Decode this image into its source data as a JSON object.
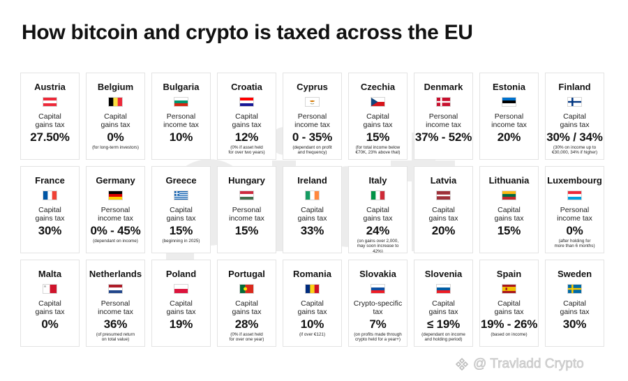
{
  "title": "How bitcoin and crypto is taxed across the EU",
  "watermark": {
    "text": "@ Travladd Crypto",
    "icon": "binance-diamond-icon"
  },
  "countries": [
    {
      "name": "Austria",
      "type": "Capital\ngains tax",
      "rate": "27.50%",
      "note": "",
      "flag": {
        "kind": "h",
        "colors": [
          "#ED2939",
          "#ffffff",
          "#ED2939"
        ]
      }
    },
    {
      "name": "Belgium",
      "type": "Capital\ngains tax",
      "rate": "0%",
      "note": "(for long-term investors)",
      "flag": {
        "kind": "v",
        "colors": [
          "#000000",
          "#FAE042",
          "#ED2939"
        ]
      }
    },
    {
      "name": "Bulgaria",
      "type": "Personal\nincome tax",
      "rate": "10%",
      "note": "",
      "flag": {
        "kind": "h",
        "colors": [
          "#ffffff",
          "#00966E",
          "#D62612"
        ]
      }
    },
    {
      "name": "Croatia",
      "type": "Capital\ngains tax",
      "rate": "12%",
      "note": "(0% if asset held\nfor over two years)",
      "flag": {
        "kind": "h",
        "colors": [
          "#FF0000",
          "#ffffff",
          "#171796"
        ]
      }
    },
    {
      "name": "Cyprus",
      "type": "Personal\nincome tax",
      "rate": "0 - 35%",
      "note": "(dependant on profit\nand frequency)",
      "flag": {
        "kind": "cyprus",
        "colors": [
          "#ffffff",
          "#D57800",
          "#4E5B31"
        ]
      }
    },
    {
      "name": "Czechia",
      "type": "Capital\ngains tax",
      "rate": "15%",
      "note": "(for total income below\n€70K, 23% above that)",
      "flag": {
        "kind": "czech",
        "colors": [
          "#ffffff",
          "#D7141A",
          "#11457E"
        ]
      }
    },
    {
      "name": "Denmark",
      "type": "Personal\nincome tax",
      "rate": "37% - 52%",
      "note": "",
      "flag": {
        "kind": "nordic",
        "colors": [
          "#C8102E",
          "#ffffff"
        ]
      }
    },
    {
      "name": "Estonia",
      "type": "Personal\nincome tax",
      "rate": "20%",
      "note": "",
      "flag": {
        "kind": "h",
        "colors": [
          "#0072CE",
          "#000000",
          "#ffffff"
        ]
      }
    },
    {
      "name": "Finland",
      "type": "Capital\ngains tax",
      "rate": "30% / 34%",
      "note": "(30% on income up to\n€30,000, 34% if higher)",
      "flag": {
        "kind": "nordic",
        "colors": [
          "#ffffff",
          "#003580"
        ]
      }
    },
    {
      "name": "France",
      "type": "Capital\ngains tax",
      "rate": "30%",
      "note": "",
      "flag": {
        "kind": "v",
        "colors": [
          "#0055A4",
          "#ffffff",
          "#EF4135"
        ]
      }
    },
    {
      "name": "Germany",
      "type": "Personal\nincome tax",
      "rate": "0% - 45%",
      "note": "(dependant on income)",
      "flag": {
        "kind": "h",
        "colors": [
          "#000000",
          "#DD0000",
          "#FFCE00"
        ]
      }
    },
    {
      "name": "Greece",
      "type": "Capital\ngains tax",
      "rate": "15%",
      "note": "(beginning in 2025)",
      "flag": {
        "kind": "greece",
        "colors": [
          "#0D5EAF",
          "#ffffff"
        ]
      }
    },
    {
      "name": "Hungary",
      "type": "Personal\nincome tax",
      "rate": "15%",
      "note": "",
      "flag": {
        "kind": "h",
        "colors": [
          "#CD2A3E",
          "#ffffff",
          "#436F4D"
        ]
      }
    },
    {
      "name": "Ireland",
      "type": "Capital\ngains tax",
      "rate": "33%",
      "note": "",
      "flag": {
        "kind": "v",
        "colors": [
          "#169B62",
          "#ffffff",
          "#FF883E"
        ]
      }
    },
    {
      "name": "Italy",
      "type": "Capital\ngains tax",
      "rate": "24%",
      "note": "(on gains over 2,000,\nmay soon increase to 42%)",
      "flag": {
        "kind": "v",
        "colors": [
          "#009246",
          "#ffffff",
          "#CE2B37"
        ]
      }
    },
    {
      "name": "Latvia",
      "type": "Capital\ngains tax",
      "rate": "20%",
      "note": "",
      "flag": {
        "kind": "latvia",
        "colors": [
          "#9E3039",
          "#ffffff"
        ]
      }
    },
    {
      "name": "Lithuania",
      "type": "Capital\ngains tax",
      "rate": "15%",
      "note": "",
      "flag": {
        "kind": "h",
        "colors": [
          "#FDB913",
          "#006A44",
          "#C1272D"
        ]
      }
    },
    {
      "name": "Luxembourg",
      "type": "Personal\nincome tax",
      "rate": "0%",
      "note": "(after holding for\nmore than 6 months)",
      "flag": {
        "kind": "h",
        "colors": [
          "#ED2939",
          "#ffffff",
          "#00A1DE"
        ]
      }
    },
    {
      "name": "Malta",
      "type": "Capital\ngains tax",
      "rate": "0%",
      "note": "",
      "flag": {
        "kind": "v2",
        "colors": [
          "#ffffff",
          "#CF142B"
        ]
      }
    },
    {
      "name": "Netherlands",
      "type": "Personal\nincome tax",
      "rate": "36%",
      "note": "(of presumed return\non total value)",
      "flag": {
        "kind": "h",
        "colors": [
          "#AE1C28",
          "#ffffff",
          "#21468B"
        ]
      }
    },
    {
      "name": "Poland",
      "type": "Capital\ngains tax",
      "rate": "19%",
      "note": "",
      "flag": {
        "kind": "h2",
        "colors": [
          "#ffffff",
          "#DC143C"
        ]
      }
    },
    {
      "name": "Portugal",
      "type": "Capital\ngains tax",
      "rate": "28%",
      "note": "(0% if asset held\nfor over one year)",
      "flag": {
        "kind": "portugal",
        "colors": [
          "#046A38",
          "#DA291C",
          "#FFE900"
        ]
      }
    },
    {
      "name": "Romania",
      "type": "Capital\ngains tax",
      "rate": "10%",
      "note": "(if over €121)",
      "flag": {
        "kind": "v",
        "colors": [
          "#002B7F",
          "#FCD116",
          "#CE1126"
        ]
      }
    },
    {
      "name": "Slovakia",
      "type": "Crypto-specific\ntax",
      "rate": "7%",
      "note": "(on profits made through\ncrypto held for a year+)",
      "flag": {
        "kind": "h",
        "colors": [
          "#ffffff",
          "#0B4EA2",
          "#EE1C25"
        ]
      }
    },
    {
      "name": "Slovenia",
      "type": "Capital\ngains tax",
      "rate": "≤ 19%",
      "note": "(dependant on income\nand holding period)",
      "flag": {
        "kind": "h",
        "colors": [
          "#ffffff",
          "#005DA4",
          "#ED1C24"
        ]
      }
    },
    {
      "name": "Spain",
      "type": "Capital\ngains tax",
      "rate": "19% - 26%",
      "note": "(based on income)",
      "flag": {
        "kind": "spain",
        "colors": [
          "#AA151B",
          "#F1BF00",
          "#AA151B"
        ]
      }
    },
    {
      "name": "Sweden",
      "type": "Capital\ngains tax",
      "rate": "30%",
      "note": "",
      "flag": {
        "kind": "nordic",
        "colors": [
          "#006AA7",
          "#FECC00"
        ]
      }
    }
  ]
}
